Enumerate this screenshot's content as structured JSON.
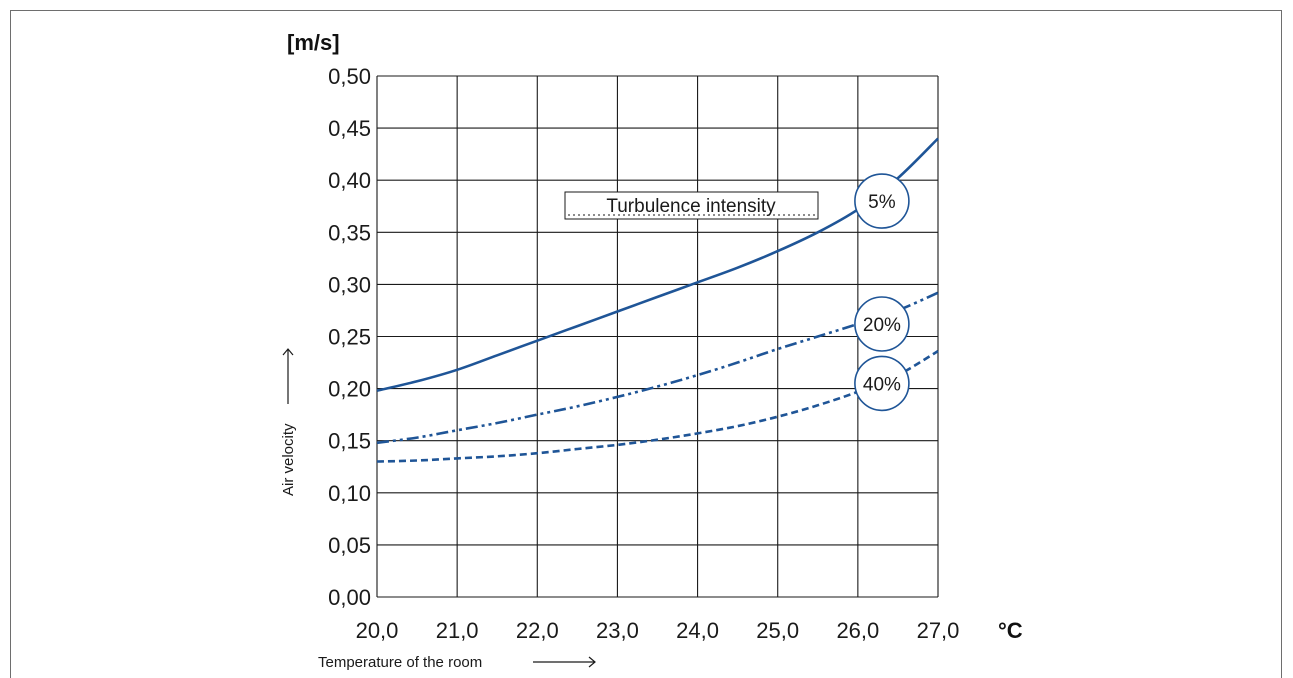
{
  "chart_data": {
    "type": "line",
    "y_unit": "[m/s]",
    "x_unit": "°C",
    "ylabel": "Air velocity",
    "xlabel": "Temperature of the room",
    "legend_title": "Turbulence intensity",
    "xlim": [
      20.0,
      27.0
    ],
    "ylim": [
      0.0,
      0.5
    ],
    "x_ticks": [
      20,
      21,
      22,
      23,
      24,
      25,
      26,
      27
    ],
    "x_tick_labels": [
      "20,0",
      "21,0",
      "22,0",
      "23,0",
      "24,0",
      "25,0",
      "26,0",
      "27,0"
    ],
    "y_ticks": [
      0,
      0.05,
      0.1,
      0.15,
      0.2,
      0.25,
      0.3,
      0.35,
      0.4,
      0.45,
      0.5
    ],
    "y_tick_labels": [
      "0,00",
      "0,05",
      "0,10",
      "0,15",
      "0,20",
      "0,25",
      "0,30",
      "0,35",
      "0,40",
      "0,45",
      "0,50"
    ],
    "grid": true,
    "colors": {
      "series": "#1f5597",
      "grid": "#1a1a1a"
    },
    "series": [
      {
        "name": "5%",
        "style": "solid",
        "x": [
          20.0,
          20.5,
          21.0,
          21.5,
          22.0,
          22.5,
          23.0,
          23.5,
          24.0,
          24.5,
          25.0,
          25.5,
          26.0,
          26.5,
          27.0
        ],
        "y": [
          0.198,
          0.207,
          0.218,
          0.232,
          0.246,
          0.26,
          0.274,
          0.288,
          0.302,
          0.316,
          0.332,
          0.35,
          0.372,
          0.402,
          0.44
        ]
      },
      {
        "name": "20%",
        "style": "dashdotdot",
        "x": [
          20.0,
          20.5,
          21.0,
          21.5,
          22.0,
          22.5,
          23.0,
          23.5,
          24.0,
          24.5,
          25.0,
          25.5,
          26.0,
          26.5,
          27.0
        ],
        "y": [
          0.148,
          0.153,
          0.16,
          0.167,
          0.175,
          0.183,
          0.192,
          0.202,
          0.213,
          0.225,
          0.238,
          0.25,
          0.262,
          0.275,
          0.292
        ]
      },
      {
        "name": "40%",
        "style": "dashed",
        "x": [
          20.0,
          20.5,
          21.0,
          21.5,
          22.0,
          22.5,
          23.0,
          23.5,
          24.0,
          24.5,
          25.0,
          25.5,
          26.0,
          26.5,
          27.0
        ],
        "y": [
          0.13,
          0.131,
          0.133,
          0.135,
          0.138,
          0.142,
          0.146,
          0.151,
          0.157,
          0.164,
          0.173,
          0.184,
          0.197,
          0.213,
          0.236
        ]
      }
    ],
    "callouts": [
      {
        "series": "5%",
        "text": "5%",
        "x": 26.3,
        "y": 0.38
      },
      {
        "series": "20%",
        "text": "20%",
        "x": 26.3,
        "y": 0.262
      },
      {
        "series": "40%",
        "text": "40%",
        "x": 26.3,
        "y": 0.205
      }
    ]
  }
}
